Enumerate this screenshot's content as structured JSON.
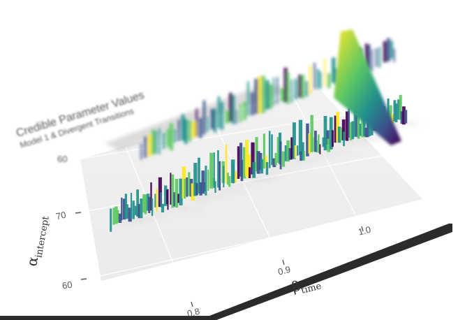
{
  "chart_data": {
    "type": "bar",
    "rendering": "3d-perspective",
    "title": "Credible Parameter Values",
    "subtitle": "Model 1 & Divergent Transitions",
    "xlabel_symbol": "β",
    "xlabel_sub": "time",
    "ylabel_symbol": "α",
    "ylabel_sub": "intercept",
    "x_ticks": [
      "0.8",
      "0.9",
      "1.0"
    ],
    "y_ticks": [
      "60",
      "70"
    ],
    "top_tick": "60",
    "xlim": [
      0.77,
      1.06
    ],
    "ylim": [
      57,
      83
    ],
    "grid": true,
    "legend": "top-right color gradient",
    "palette": [
      "#440154",
      "#3b528b",
      "#21908c",
      "#5dc863",
      "#fde725"
    ],
    "near_ridge": [
      {
        "x": 0.78,
        "y": 64.2
      },
      {
        "x": 0.8,
        "y": 64.6
      },
      {
        "x": 0.82,
        "y": 65.0
      },
      {
        "x": 0.84,
        "y": 65.4
      },
      {
        "x": 0.86,
        "y": 65.8
      },
      {
        "x": 0.88,
        "y": 66.2
      },
      {
        "x": 0.9,
        "y": 66.6
      },
      {
        "x": 0.92,
        "y": 67.0
      },
      {
        "x": 0.94,
        "y": 67.4
      },
      {
        "x": 0.96,
        "y": 67.8
      },
      {
        "x": 0.98,
        "y": 68.2
      },
      {
        "x": 1.0,
        "y": 68.6
      },
      {
        "x": 1.02,
        "y": 69.0
      },
      {
        "x": 1.04,
        "y": 69.4
      },
      {
        "x": 1.06,
        "y": 69.8
      }
    ],
    "far_ridge": [
      {
        "x": 0.8,
        "y": 76.0
      },
      {
        "x": 0.84,
        "y": 77.0
      },
      {
        "x": 0.88,
        "y": 78.0
      },
      {
        "x": 0.92,
        "y": 79.0
      },
      {
        "x": 0.96,
        "y": 80.0
      },
      {
        "x": 1.0,
        "y": 81.0
      },
      {
        "x": 1.04,
        "y": 82.0
      }
    ]
  }
}
